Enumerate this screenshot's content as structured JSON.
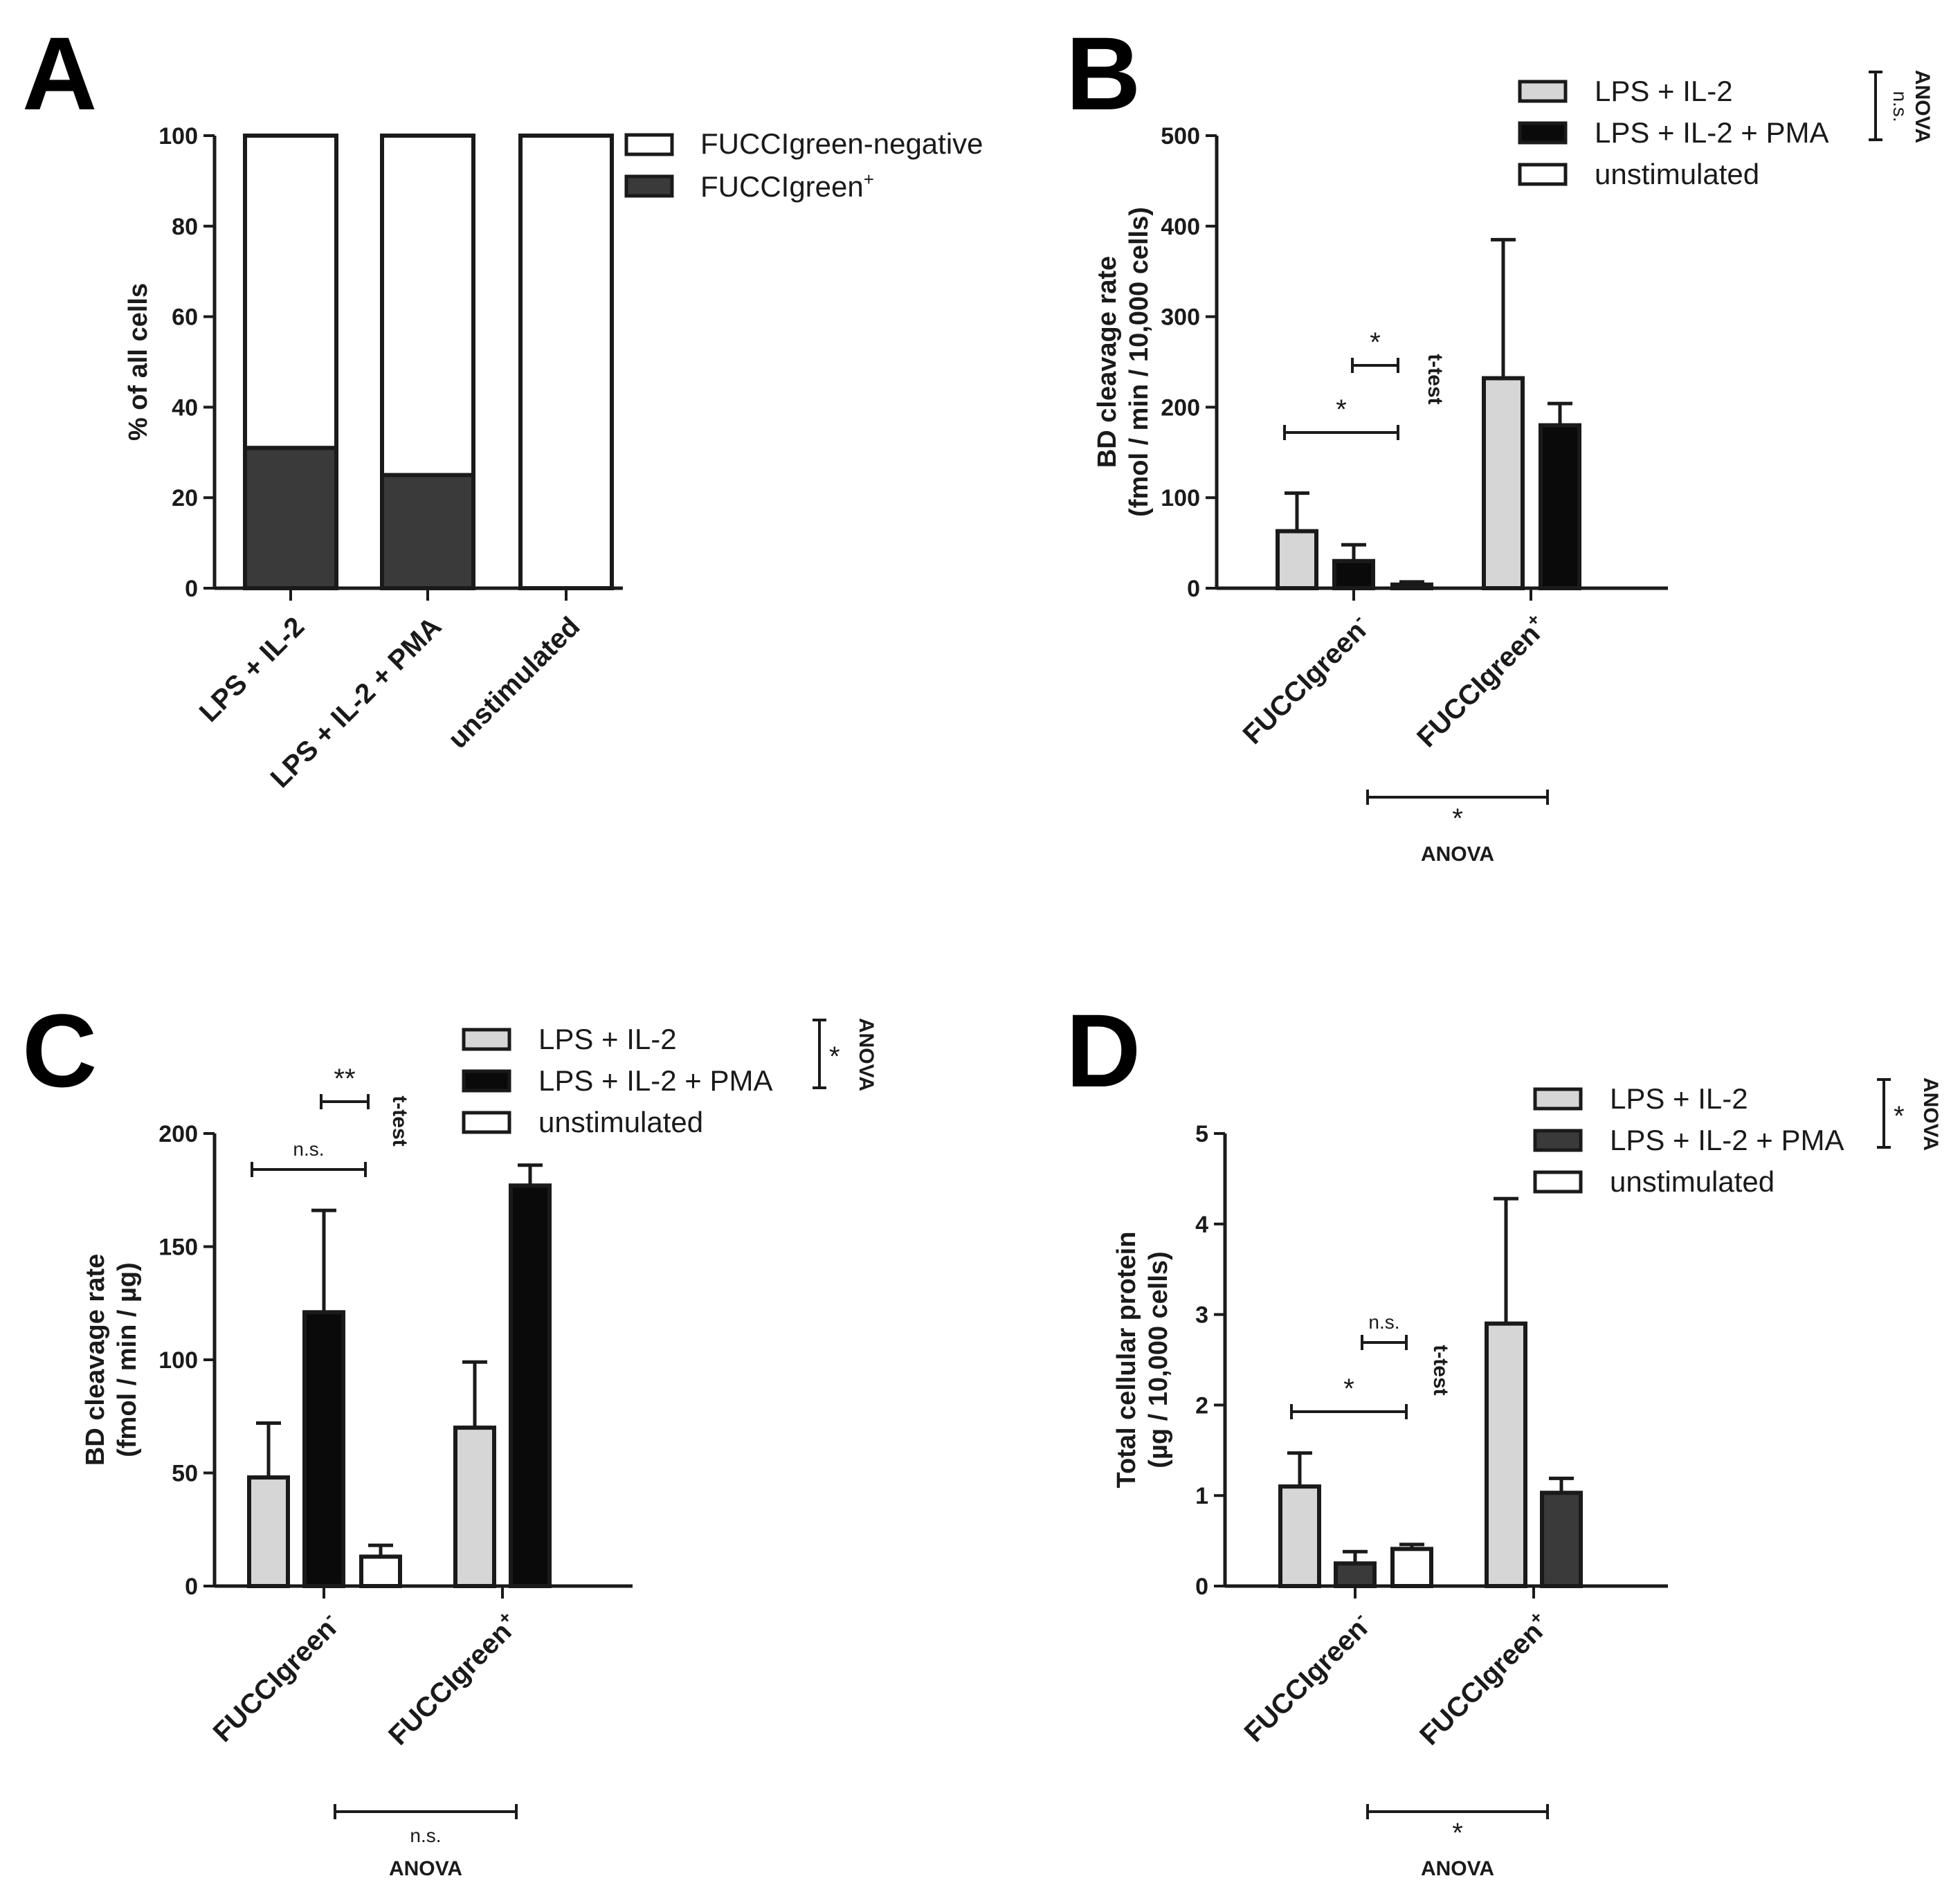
{
  "colors": {
    "light": "#d6d6d6",
    "black": "#0a0a0a",
    "dark": "#3a3a3a",
    "white": "#ffffff",
    "ink": "#1a1a1a"
  },
  "chart_data": [
    {
      "panel": "A",
      "type": "bar",
      "stacked": true,
      "ylabel": "% of all cells",
      "ylim": [
        0,
        100
      ],
      "yticks": [
        "0",
        "20",
        "40",
        "60",
        "80",
        "100"
      ],
      "categories": [
        "LPS + IL-2",
        "LPS + IL-2 + PMA",
        "unstimulated"
      ],
      "series": [
        {
          "name": "FUCCIgreen-negative",
          "values": [
            69,
            75,
            100
          ]
        },
        {
          "name": "FUCCIgreen",
          "name_sup": "+",
          "values": [
            31,
            25,
            0
          ]
        }
      ],
      "legend": "top-right"
    },
    {
      "panel": "B",
      "type": "bar",
      "ylabel": "BD cleavage rate",
      "ylabel2": "(fmol / min / 10,000 cells)",
      "ylim": [
        0,
        500
      ],
      "yticks": [
        "0",
        "100",
        "200",
        "300",
        "400",
        "500"
      ],
      "groups": [
        {
          "base": "FUCCIgreen",
          "sup": "-"
        },
        {
          "base": "FUCCIgreen",
          "sup": "+"
        }
      ],
      "series": [
        {
          "name": "LPS + IL-2",
          "values": [
            63,
            232
          ],
          "errors": [
            42,
            153
          ]
        },
        {
          "name": "LPS + IL-2 + PMA",
          "values": [
            30,
            180
          ],
          "errors": [
            18,
            24
          ]
        },
        {
          "name": "unstimulated",
          "values": [
            4,
            null
          ],
          "errors": [
            3,
            null
          ]
        }
      ],
      "legend": "top-right",
      "legend_bracket": {
        "label": "n.s.",
        "test": "ANOVA"
      },
      "brackets": [
        {
          "label": "*",
          "test": "t-test",
          "from": "LPS + IL-2",
          "to": "unstimulated"
        },
        {
          "label": "*",
          "from": "LPS + IL-2 + PMA",
          "to": "unstimulated"
        }
      ],
      "bottom_bracket": {
        "label": "*",
        "test": "ANOVA"
      }
    },
    {
      "panel": "C",
      "type": "bar",
      "ylabel": "BD cleavage rate",
      "ylabel2": "(fmol / min / µg)",
      "ylim": [
        0,
        200
      ],
      "yticks": [
        "0",
        "50",
        "100",
        "150",
        "200"
      ],
      "groups": [
        {
          "base": "FUCCIgreen",
          "sup": "-"
        },
        {
          "base": "FUCCIgreen",
          "sup": "+"
        }
      ],
      "series": [
        {
          "name": "LPS + IL-2",
          "values": [
            48,
            70
          ],
          "errors": [
            24,
            29
          ]
        },
        {
          "name": "LPS + IL-2 + PMA",
          "values": [
            121,
            177
          ],
          "errors": [
            45,
            9
          ]
        },
        {
          "name": "unstimulated",
          "values": [
            13,
            null
          ],
          "errors": [
            5,
            null
          ]
        }
      ],
      "legend": "top-right",
      "legend_bracket": {
        "label": "*",
        "test": "ANOVA"
      },
      "brackets": [
        {
          "label": "n.s.",
          "test": "t-test",
          "from": "LPS + IL-2",
          "to": "unstimulated"
        },
        {
          "label": "**",
          "from": "LPS + IL-2 + PMA",
          "to": "unstimulated"
        }
      ],
      "bottom_bracket": {
        "label": "n.s.",
        "test": "ANOVA"
      }
    },
    {
      "panel": "D",
      "type": "bar",
      "ylabel": "Total cellular protein",
      "ylabel2": "(µg / 10,000 cells)",
      "ylim": [
        0,
        5
      ],
      "yticks": [
        "0",
        "1",
        "2",
        "3",
        "4",
        "5"
      ],
      "groups": [
        {
          "base": "FUCCIgreen",
          "sup": "-"
        },
        {
          "base": "FUCCIgreen",
          "sup": "+"
        }
      ],
      "series": [
        {
          "name": "LPS + IL-2",
          "values": [
            1.1,
            2.9
          ],
          "errors": [
            0.37,
            1.38
          ]
        },
        {
          "name": "LPS + IL-2 + PMA",
          "values": [
            0.25,
            1.03
          ],
          "errors": [
            0.13,
            0.16
          ]
        },
        {
          "name": "unstimulated",
          "values": [
            0.41,
            null
          ],
          "errors": [
            0.05,
            null
          ]
        }
      ],
      "legend": "top-right",
      "legend_bracket": {
        "label": "*",
        "test": "ANOVA"
      },
      "brackets": [
        {
          "label": "*",
          "test": "t-test",
          "from": "LPS + IL-2",
          "to": "unstimulated"
        },
        {
          "label": "n.s.",
          "from": "LPS + IL-2 + PMA",
          "to": "unstimulated"
        }
      ],
      "bottom_bracket": {
        "label": "*",
        "test": "ANOVA"
      }
    }
  ]
}
